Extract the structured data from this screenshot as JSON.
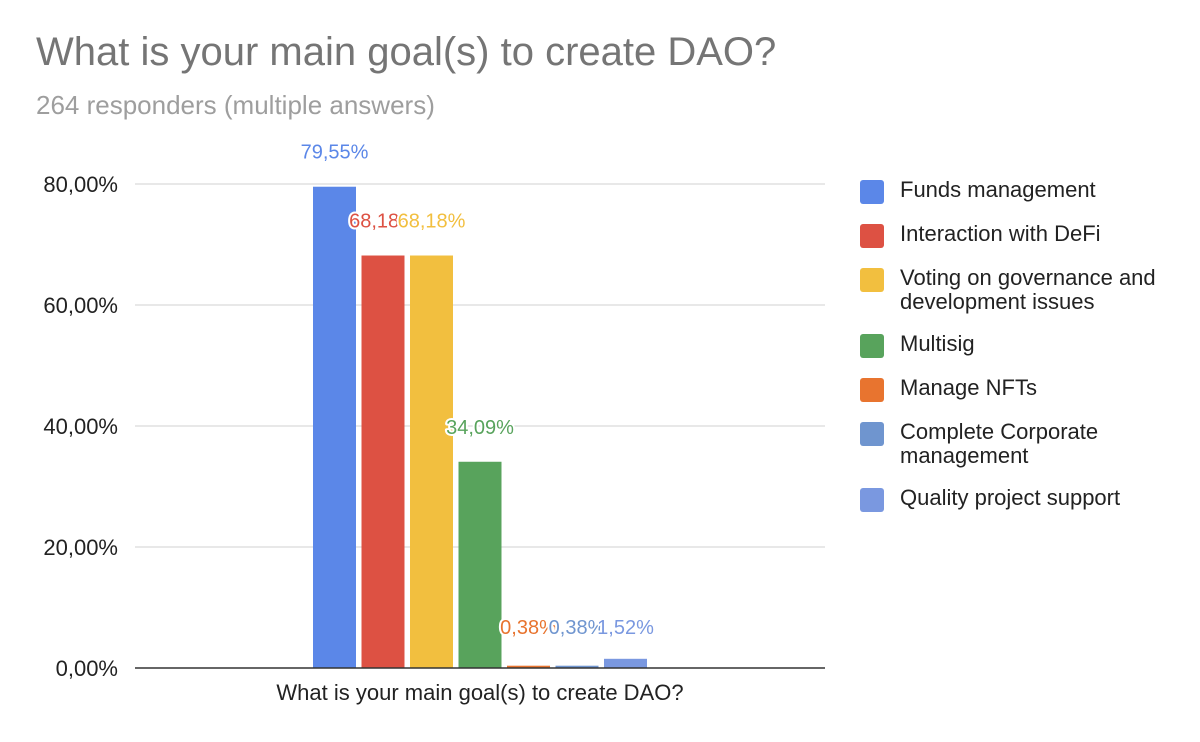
{
  "chart_data": {
    "type": "bar",
    "title": "What is your main goal(s) to create DAO?",
    "subtitle": "264 responders (multiple answers)",
    "categories": [
      "What is your main goal(s) to create DAO?"
    ],
    "series": [
      {
        "name": "Funds management",
        "values": [
          79.55
        ],
        "label": "79,55%",
        "color": "#5b87e8"
      },
      {
        "name": "Interaction with DeFi",
        "values": [
          68.18
        ],
        "label": "68,18%",
        "color": "#dd5143"
      },
      {
        "name": "Voting on governance and development issues",
        "values": [
          68.18
        ],
        "label": "68,18%",
        "color": "#f2bf3f"
      },
      {
        "name": "Multisig",
        "values": [
          34.09
        ],
        "label": "34,09%",
        "color": "#58a35c"
      },
      {
        "name": "Manage NFTs",
        "values": [
          0.38
        ],
        "label": "0,38%",
        "color": "#e8742f"
      },
      {
        "name": "Complete Corporate management",
        "values": [
          0.38
        ],
        "label": "0,38%",
        "color": "#6f95cf"
      },
      {
        "name": "Quality project support",
        "values": [
          1.52
        ],
        "label": "1,52%",
        "color": "#7a98e0"
      }
    ],
    "yticks": [
      "0,00%",
      "20,00%",
      "40,00%",
      "60,00%",
      "80,00%"
    ],
    "ytick_values": [
      0,
      20,
      40,
      60,
      80
    ],
    "ylim": [
      0,
      80
    ],
    "grid": true,
    "legend_position": "right"
  }
}
